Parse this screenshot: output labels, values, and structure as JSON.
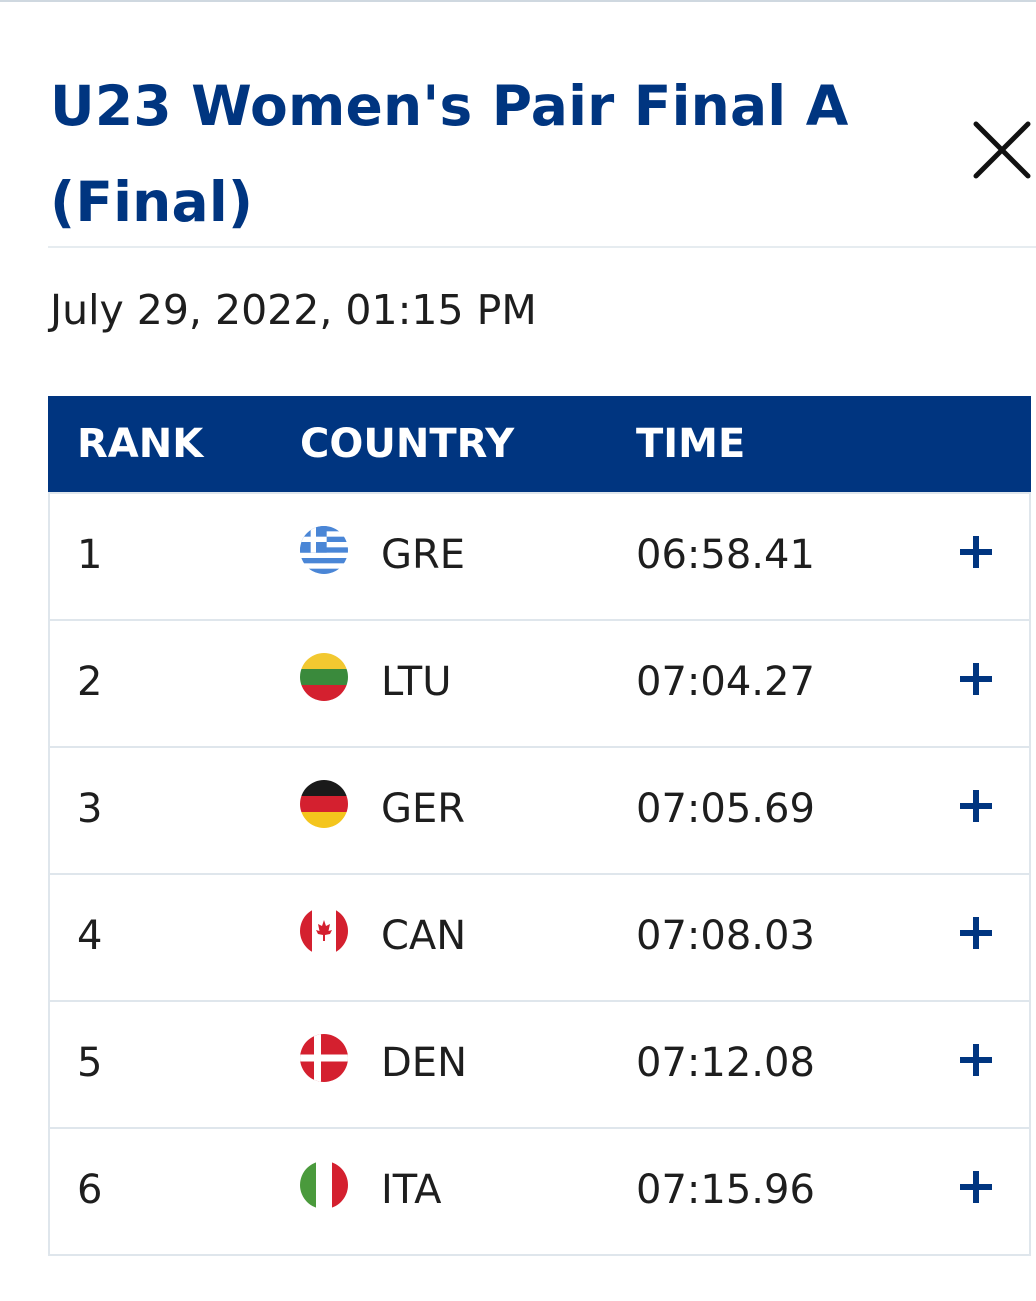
{
  "header": {
    "title": "U23 Women's Pair Final A (Final)",
    "close_icon": "close-icon"
  },
  "event": {
    "datetime": "July 29, 2022, 01:15 PM"
  },
  "table": {
    "columns": {
      "rank": "RANK",
      "country": "COUNTRY",
      "time": "TIME"
    },
    "rows": [
      {
        "rank": "1",
        "country": "GRE",
        "flag_icon": "greece-flag-icon",
        "time": "06:58.41",
        "expand_icon": "plus-icon"
      },
      {
        "rank": "2",
        "country": "LTU",
        "flag_icon": "lithuania-flag-icon",
        "time": "07:04.27",
        "expand_icon": "plus-icon"
      },
      {
        "rank": "3",
        "country": "GER",
        "flag_icon": "germany-flag-icon",
        "time": "07:05.69",
        "expand_icon": "plus-icon"
      },
      {
        "rank": "4",
        "country": "CAN",
        "flag_icon": "canada-flag-icon",
        "time": "07:08.03",
        "expand_icon": "plus-icon"
      },
      {
        "rank": "5",
        "country": "DEN",
        "flag_icon": "denmark-flag-icon",
        "time": "07:12.08",
        "expand_icon": "plus-icon"
      },
      {
        "rank": "6",
        "country": "ITA",
        "flag_icon": "italy-flag-icon",
        "time": "07:15.96",
        "expand_icon": "plus-icon"
      }
    ]
  },
  "colors": {
    "brand_blue": "#003580",
    "text": "#1e1e1e",
    "divider": "#dfe6ec"
  }
}
